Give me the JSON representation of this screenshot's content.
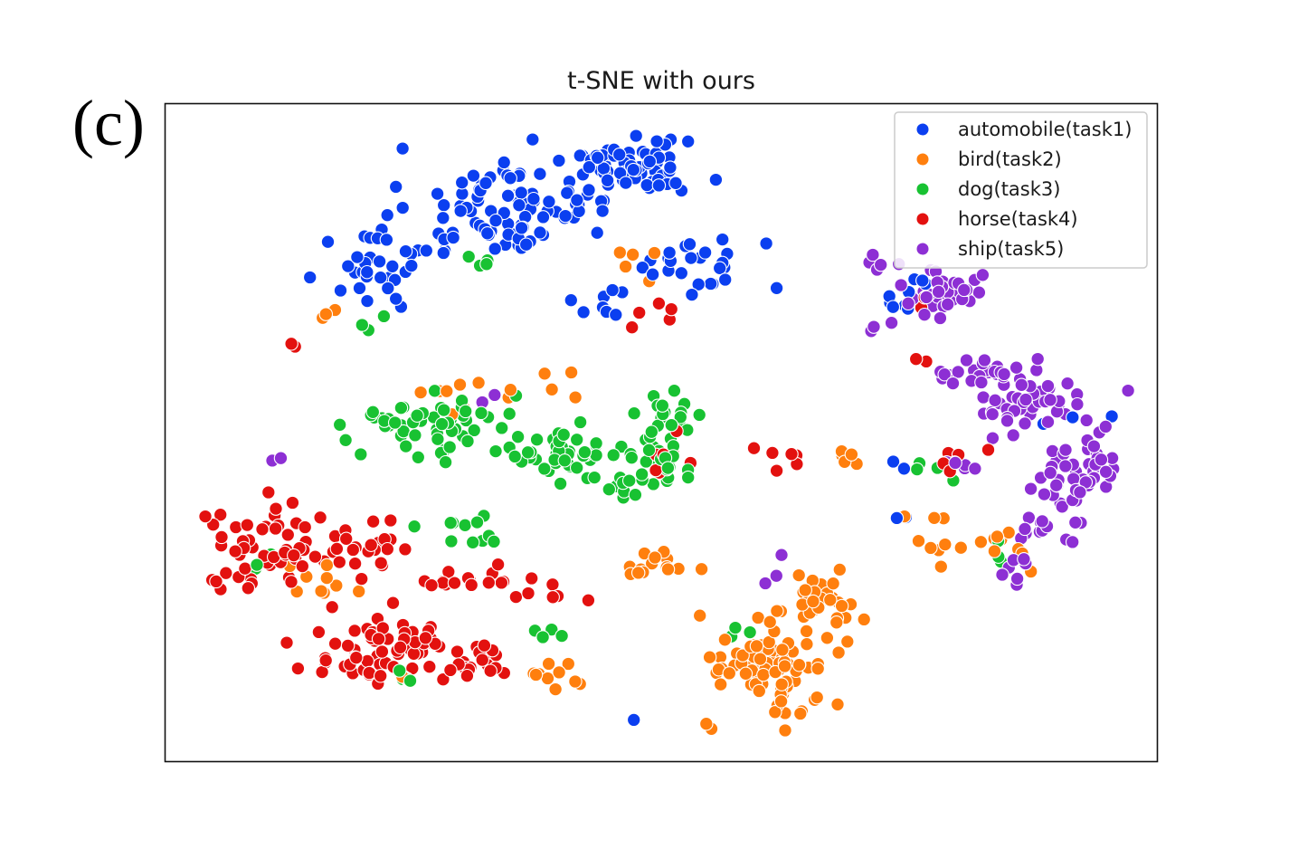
{
  "figure": {
    "panel_label": "(c)"
  },
  "chart_data": {
    "type": "scatter",
    "title": "t-SNE with ours",
    "xlabel": "",
    "ylabel": "",
    "xlim": [
      0,
      100
    ],
    "ylim": [
      0,
      100
    ],
    "grid": false,
    "legend_position": "top-right",
    "series": [
      {
        "name": "automobile(task1)",
        "color": "#0b3ff0",
        "clusters": [
          {
            "cx": 34,
            "cy": 84,
            "rx": 9,
            "ry": 6,
            "n": 90
          },
          {
            "cx": 47,
            "cy": 90,
            "rx": 6,
            "ry": 4,
            "n": 70
          },
          {
            "cx": 21,
            "cy": 75,
            "rx": 4,
            "ry": 4,
            "n": 30
          },
          {
            "cx": 54,
            "cy": 76,
            "rx": 5,
            "ry": 4,
            "n": 25
          },
          {
            "cx": 45,
            "cy": 70,
            "rx": 3,
            "ry": 2,
            "n": 8
          },
          {
            "cx": 74,
            "cy": 69,
            "rx": 2,
            "ry": 2,
            "n": 6
          },
          {
            "cx": 76,
            "cy": 73,
            "rx": 1,
            "ry": 1,
            "n": 3
          },
          {
            "cx": 74,
            "cy": 45,
            "rx": 1,
            "ry": 1,
            "n": 2
          },
          {
            "cx": 89,
            "cy": 52,
            "rx": 3,
            "ry": 1,
            "n": 3
          },
          {
            "cx": 74,
            "cy": 37,
            "rx": 1,
            "ry": 1,
            "n": 2
          },
          {
            "cx": 47,
            "cy": 6,
            "rx": 1,
            "ry": 1,
            "n": 1
          }
        ]
      },
      {
        "name": "bird(task2)",
        "color": "#ff7f0e",
        "clusters": [
          {
            "cx": 61,
            "cy": 14,
            "rx": 5,
            "ry": 7,
            "n": 90
          },
          {
            "cx": 66,
            "cy": 24,
            "rx": 3,
            "ry": 4,
            "n": 30
          },
          {
            "cx": 50,
            "cy": 30,
            "rx": 3,
            "ry": 2,
            "n": 15
          },
          {
            "cx": 30,
            "cy": 56,
            "rx": 5,
            "ry": 3,
            "n": 10
          },
          {
            "cx": 40,
            "cy": 13,
            "rx": 3,
            "ry": 2,
            "n": 10
          },
          {
            "cx": 15,
            "cy": 28,
            "rx": 3,
            "ry": 3,
            "n": 10
          },
          {
            "cx": 77,
            "cy": 34,
            "rx": 2,
            "ry": 3,
            "n": 8
          },
          {
            "cx": 86,
            "cy": 33,
            "rx": 4,
            "ry": 3,
            "n": 10
          },
          {
            "cx": 68,
            "cy": 46,
            "rx": 2,
            "ry": 2,
            "n": 6
          },
          {
            "cx": 48,
            "cy": 76,
            "rx": 2,
            "ry": 2,
            "n": 5
          },
          {
            "cx": 40,
            "cy": 57,
            "rx": 2,
            "ry": 2,
            "n": 4
          },
          {
            "cx": 25,
            "cy": 13,
            "rx": 2,
            "ry": 2,
            "n": 4
          },
          {
            "cx": 16,
            "cy": 67,
            "rx": 2,
            "ry": 2,
            "n": 3
          }
        ]
      },
      {
        "name": "dog(task3)",
        "color": "#18c232",
        "clusters": [
          {
            "cx": 27,
            "cy": 51,
            "rx": 6,
            "ry": 4,
            "n": 55
          },
          {
            "cx": 40,
            "cy": 47,
            "rx": 5,
            "ry": 3,
            "n": 40
          },
          {
            "cx": 48,
            "cy": 44,
            "rx": 4,
            "ry": 4,
            "n": 35
          },
          {
            "cx": 51,
            "cy": 52,
            "rx": 3,
            "ry": 3,
            "n": 20
          },
          {
            "cx": 31,
            "cy": 36,
            "rx": 3,
            "ry": 3,
            "n": 12
          },
          {
            "cx": 23,
            "cy": 14,
            "rx": 2,
            "ry": 2,
            "n": 4
          },
          {
            "cx": 38,
            "cy": 19,
            "rx": 2,
            "ry": 2,
            "n": 4
          },
          {
            "cx": 58,
            "cy": 20,
            "rx": 2,
            "ry": 2,
            "n": 3
          },
          {
            "cx": 31,
            "cy": 76,
            "rx": 3,
            "ry": 1,
            "n": 4
          },
          {
            "cx": 77,
            "cy": 44,
            "rx": 2,
            "ry": 2,
            "n": 4
          },
          {
            "cx": 84,
            "cy": 31,
            "rx": 2,
            "ry": 2,
            "n": 3
          },
          {
            "cx": 21,
            "cy": 67,
            "rx": 2,
            "ry": 2,
            "n": 3
          },
          {
            "cx": 10,
            "cy": 30,
            "rx": 2,
            "ry": 2,
            "n": 3
          }
        ]
      },
      {
        "name": "horse(task4)",
        "color": "#e3110f",
        "clusters": [
          {
            "cx": 10,
            "cy": 32,
            "rx": 6,
            "ry": 6,
            "n": 55
          },
          {
            "cx": 22,
            "cy": 17,
            "rx": 7,
            "ry": 4,
            "n": 65
          },
          {
            "cx": 20,
            "cy": 32,
            "rx": 4,
            "ry": 3,
            "n": 20
          },
          {
            "cx": 32,
            "cy": 15,
            "rx": 4,
            "ry": 2,
            "n": 18
          },
          {
            "cx": 28,
            "cy": 27,
            "rx": 2,
            "ry": 2,
            "n": 8
          },
          {
            "cx": 35,
            "cy": 28,
            "rx": 3,
            "ry": 2,
            "n": 8
          },
          {
            "cx": 40,
            "cy": 25,
            "rx": 3,
            "ry": 2,
            "n": 6
          },
          {
            "cx": 50,
            "cy": 45,
            "rx": 3,
            "ry": 3,
            "n": 8
          },
          {
            "cx": 62,
            "cy": 46,
            "rx": 3,
            "ry": 2,
            "n": 6
          },
          {
            "cx": 77,
            "cy": 70,
            "rx": 1,
            "ry": 1,
            "n": 2
          },
          {
            "cx": 48,
            "cy": 67,
            "rx": 3,
            "ry": 3,
            "n": 5
          },
          {
            "cx": 77,
            "cy": 61,
            "rx": 1,
            "ry": 1,
            "n": 2
          },
          {
            "cx": 79,
            "cy": 45,
            "rx": 1,
            "ry": 1,
            "n": 2
          },
          {
            "cx": 13,
            "cy": 63,
            "rx": 1,
            "ry": 1,
            "n": 2
          },
          {
            "cx": 81,
            "cy": 45,
            "rx": 4,
            "ry": 2,
            "n": 4
          }
        ]
      },
      {
        "name": "ship(task5)",
        "color": "#8d2fd4",
        "clusters": [
          {
            "cx": 87,
            "cy": 55,
            "rx": 5,
            "ry": 4,
            "n": 45
          },
          {
            "cx": 92,
            "cy": 45,
            "rx": 3,
            "ry": 5,
            "n": 40
          },
          {
            "cx": 82,
            "cy": 59,
            "rx": 4,
            "ry": 2,
            "n": 20
          },
          {
            "cx": 78,
            "cy": 71,
            "rx": 3,
            "ry": 3,
            "n": 35
          },
          {
            "cx": 72,
            "cy": 75,
            "rx": 3,
            "ry": 2,
            "n": 6
          },
          {
            "cx": 72,
            "cy": 66,
            "rx": 1,
            "ry": 1,
            "n": 3
          },
          {
            "cx": 89,
            "cy": 34,
            "rx": 4,
            "ry": 3,
            "n": 15
          },
          {
            "cx": 86,
            "cy": 28,
            "rx": 2,
            "ry": 2,
            "n": 5
          },
          {
            "cx": 80,
            "cy": 45,
            "rx": 3,
            "ry": 1,
            "n": 6
          },
          {
            "cx": 90,
            "cy": 40,
            "rx": 3,
            "ry": 2,
            "n": 8
          },
          {
            "cx": 61,
            "cy": 30,
            "rx": 2,
            "ry": 2,
            "n": 3
          },
          {
            "cx": 11,
            "cy": 46,
            "rx": 1,
            "ry": 1,
            "n": 2
          },
          {
            "cx": 32,
            "cy": 55,
            "rx": 1,
            "ry": 1,
            "n": 2
          }
        ]
      }
    ]
  }
}
